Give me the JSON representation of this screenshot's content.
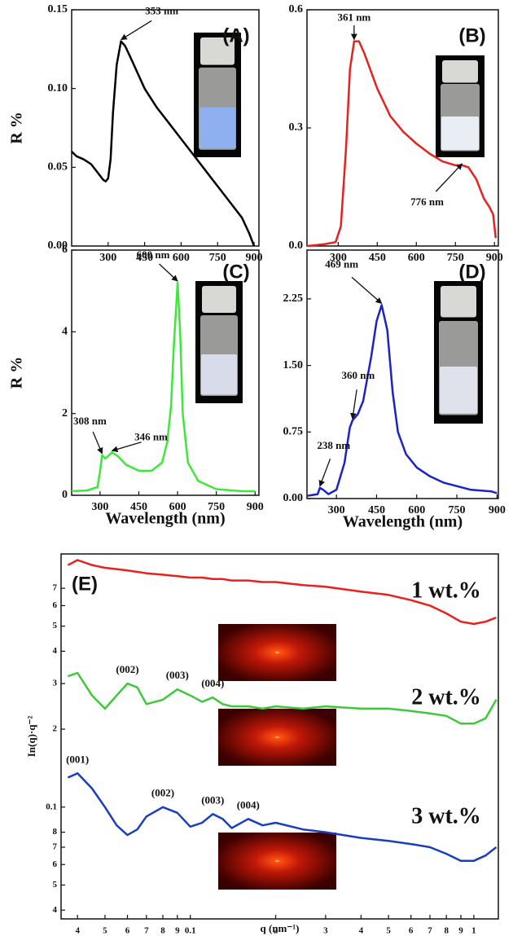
{
  "chart_data": [
    {
      "type": "line",
      "panel_label": "(A)",
      "ylabel": "R %",
      "color": "#000000",
      "x": [
        150,
        170,
        200,
        230,
        260,
        280,
        290,
        300,
        310,
        320,
        335,
        353,
        370,
        400,
        450,
        500,
        550,
        600,
        650,
        700,
        750,
        800,
        850,
        880,
        900
      ],
      "values": [
        0.06,
        0.057,
        0.055,
        0.052,
        0.046,
        0.042,
        0.041,
        0.043,
        0.055,
        0.085,
        0.115,
        0.13,
        0.127,
        0.117,
        0.1,
        0.088,
        0.078,
        0.068,
        0.058,
        0.048,
        0.038,
        0.028,
        0.018,
        0.008,
        0.0
      ],
      "xlim": [
        150,
        920
      ],
      "ylim": [
        0,
        0.15
      ],
      "xticks": [
        300,
        450,
        600,
        750,
        900
      ],
      "yticks": [
        {
          "value": 0,
          "label": "0.00"
        },
        0.05,
        {
          "value": 0.1,
          "label": "0.10"
        },
        0.15
      ],
      "annotations": [
        {
          "text": "353 nm",
          "x": 353,
          "y": 0.13
        }
      ]
    },
    {
      "type": "line",
      "panel_label": "(B)",
      "color": "#e8201e",
      "x": [
        180,
        250,
        290,
        310,
        330,
        345,
        361,
        380,
        400,
        450,
        500,
        550,
        600,
        650,
        700,
        750,
        776,
        800,
        830,
        860,
        880,
        895,
        905
      ],
      "values": [
        0.0,
        0.005,
        0.01,
        0.05,
        0.25,
        0.45,
        0.52,
        0.52,
        0.49,
        0.4,
        0.33,
        0.29,
        0.26,
        0.235,
        0.215,
        0.205,
        0.205,
        0.2,
        0.17,
        0.12,
        0.1,
        0.08,
        0.02
      ],
      "xlim": [
        180,
        915
      ],
      "ylim": [
        0,
        0.6
      ],
      "xticks": [
        300,
        450,
        600,
        750,
        900
      ],
      "yticks": [
        {
          "value": 0,
          "label": "0.0"
        },
        0.3,
        0.6
      ],
      "annotations": [
        {
          "text": "361 nm",
          "x": 361,
          "y": 0.52
        },
        {
          "text": "776 nm",
          "x": 776,
          "y": 0.205
        }
      ]
    },
    {
      "type": "line",
      "panel_label": "(C)",
      "ylabel": "R %",
      "xlabel": "Wavelength (nm)",
      "color": "#3ee83a",
      "x": [
        190,
        250,
        290,
        300,
        308,
        320,
        330,
        346,
        370,
        400,
        450,
        500,
        540,
        560,
        575,
        585,
        600,
        610,
        620,
        640,
        680,
        750,
        850,
        900
      ],
      "values": [
        0.1,
        0.12,
        0.2,
        0.6,
        0.98,
        0.9,
        0.95,
        1.05,
        0.95,
        0.75,
        0.6,
        0.6,
        0.8,
        1.3,
        2.2,
        3.6,
        5.2,
        4.0,
        2.0,
        0.8,
        0.35,
        0.15,
        0.1,
        0.1
      ],
      "xlim": [
        190,
        915
      ],
      "ylim": [
        0,
        6
      ],
      "xticks": [
        300,
        450,
        600,
        750,
        900
      ],
      "yticks": [
        0,
        2,
        4,
        6
      ],
      "annotations": [
        {
          "text": "308 nm",
          "x": 308,
          "y": 0.98
        },
        {
          "text": "346 nm",
          "x": 346,
          "y": 1.05
        },
        {
          "text": "600 nm",
          "x": 600,
          "y": 5.2
        }
      ]
    },
    {
      "type": "line",
      "panel_label": "(D)",
      "xlabel": "Wavelength (nm)",
      "color": "#1a22c8",
      "x": [
        190,
        230,
        238,
        250,
        270,
        300,
        330,
        350,
        360,
        380,
        400,
        430,
        450,
        469,
        490,
        510,
        530,
        560,
        600,
        650,
        700,
        800,
        880,
        900
      ],
      "values": [
        0.03,
        0.05,
        0.12,
        0.1,
        0.05,
        0.1,
        0.4,
        0.8,
        0.88,
        0.95,
        1.1,
        1.6,
        2.0,
        2.18,
        1.9,
        1.2,
        0.75,
        0.5,
        0.35,
        0.25,
        0.18,
        0.1,
        0.08,
        0.06
      ],
      "xlim": [
        190,
        905
      ],
      "ylim": [
        0,
        2.8
      ],
      "xticks": [
        300,
        450,
        600,
        750,
        900
      ],
      "yticks": [
        {
          "value": 0,
          "label": "0.00"
        },
        0.75,
        {
          "value": 1.5,
          "label": "1.50"
        },
        2.25
      ],
      "annotations": [
        {
          "text": "238 nm",
          "x": 238,
          "y": 0.12
        },
        {
          "text": "360 nm",
          "x": 360,
          "y": 0.88
        },
        {
          "text": "469 nm",
          "x": 469,
          "y": 2.18
        }
      ]
    },
    {
      "type": "line",
      "panel_label": "(E)",
      "xlabel": "q (nm⁻¹)",
      "ylabel": "In(q)·q⁻²",
      "xscale": "log",
      "yscale": "log",
      "x": [
        0.037,
        0.04,
        0.045,
        0.05,
        0.055,
        0.06,
        0.065,
        0.07,
        0.08,
        0.09,
        0.1,
        0.11,
        0.12,
        0.13,
        0.14,
        0.16,
        0.18,
        0.2,
        0.25,
        0.3,
        0.4,
        0.5,
        0.6,
        0.7,
        0.8,
        0.9,
        1.0,
        1.1,
        1.2
      ],
      "series": [
        {
          "name": "1 wt.%",
          "color": "#e8201e",
          "values": [
            0.86,
            0.9,
            0.86,
            0.84,
            0.83,
            0.82,
            0.81,
            0.8,
            0.79,
            0.78,
            0.77,
            0.77,
            0.76,
            0.76,
            0.75,
            0.75,
            0.74,
            0.74,
            0.72,
            0.71,
            0.68,
            0.66,
            0.63,
            0.6,
            0.56,
            0.52,
            0.51,
            0.52,
            0.54
          ]
        },
        {
          "name": "2 wt.%",
          "color": "#3ec83a",
          "values": [
            0.32,
            0.33,
            0.27,
            0.24,
            0.27,
            0.3,
            0.29,
            0.25,
            0.26,
            0.285,
            0.27,
            0.255,
            0.265,
            0.25,
            0.245,
            0.245,
            0.24,
            0.245,
            0.24,
            0.245,
            0.24,
            0.24,
            0.235,
            0.23,
            0.225,
            0.21,
            0.21,
            0.22,
            0.26
          ]
        },
        {
          "name": "3 wt.%",
          "color": "#1a3ec0",
          "values": [
            0.13,
            0.135,
            0.118,
            0.1,
            0.085,
            0.078,
            0.082,
            0.092,
            0.1,
            0.095,
            0.084,
            0.087,
            0.094,
            0.09,
            0.083,
            0.09,
            0.085,
            0.087,
            0.082,
            0.08,
            0.076,
            0.074,
            0.072,
            0.07,
            0.066,
            0.062,
            0.062,
            0.065,
            0.07
          ]
        }
      ],
      "xlim": [
        0.035,
        1.22
      ],
      "ylim": [
        0.037,
        0.95
      ],
      "xticks": [
        {
          "value": 0.04,
          "label": "4"
        },
        {
          "value": 0.05,
          "label": "5"
        },
        {
          "value": 0.06,
          "label": "6"
        },
        {
          "value": 0.07,
          "label": "7"
        },
        {
          "value": 0.08,
          "label": "8"
        },
        {
          "value": 0.09,
          "label": "9"
        },
        0.1,
        {
          "value": 0.2,
          "label": "2"
        },
        {
          "value": 0.3,
          "label": "3"
        },
        {
          "value": 0.4,
          "label": "4"
        },
        {
          "value": 0.5,
          "label": "5"
        },
        {
          "value": 0.6,
          "label": "6"
        },
        {
          "value": 0.7,
          "label": "7"
        },
        {
          "value": 0.8,
          "label": "8"
        },
        {
          "value": 0.9,
          "label": "9"
        },
        1
      ],
      "yticks": [
        {
          "value": 0.04,
          "label": "4"
        },
        {
          "value": 0.05,
          "label": "5"
        },
        {
          "value": 0.06,
          "label": "6"
        },
        {
          "value": 0.07,
          "label": "7"
        },
        {
          "value": 0.08,
          "label": "8"
        },
        0.1,
        {
          "value": 0.2,
          "label": "2"
        },
        {
          "value": 0.3,
          "label": "3"
        },
        {
          "value": 0.4,
          "label": "4"
        },
        {
          "value": 0.5,
          "label": "5"
        },
        {
          "value": 0.6,
          "label": "6"
        },
        {
          "value": 0.7,
          "label": "7"
        }
      ],
      "annotations": [
        {
          "text": "(002)",
          "x": 0.06,
          "y": 0.3
        },
        {
          "text": "(003)",
          "x": 0.09,
          "y": 0.285
        },
        {
          "text": "(004)",
          "x": 0.12,
          "y": 0.265
        },
        {
          "text": "(001)",
          "x": 0.04,
          "y": 0.135
        },
        {
          "text": "(002)",
          "x": 0.08,
          "y": 0.1
        },
        {
          "text": "(003)",
          "x": 0.12,
          "y": 0.094
        },
        {
          "text": "(004)",
          "x": 0.16,
          "y": 0.09
        }
      ]
    }
  ]
}
